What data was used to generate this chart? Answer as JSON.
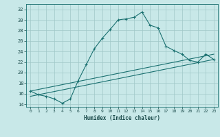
{
  "xlabel": "Humidex (Indice chaleur)",
  "ylabel": "",
  "bg_color": "#c8e8e8",
  "grid_color": "#a0c8c8",
  "line_color": "#1a7070",
  "xlim": [
    -0.5,
    23.5
  ],
  "ylim": [
    13.5,
    33.0
  ],
  "yticks": [
    14,
    16,
    18,
    20,
    22,
    24,
    26,
    28,
    30,
    32
  ],
  "xticks": [
    0,
    1,
    2,
    3,
    4,
    5,
    6,
    7,
    8,
    9,
    10,
    11,
    12,
    13,
    14,
    15,
    16,
    17,
    18,
    19,
    20,
    21,
    22,
    23
  ],
  "main_x": [
    0,
    1,
    2,
    3,
    4,
    5,
    6,
    7,
    8,
    9,
    10,
    11,
    12,
    13,
    14,
    15,
    16,
    17,
    18,
    19,
    20,
    21,
    22,
    23
  ],
  "main_y": [
    16.5,
    15.8,
    15.5,
    15.0,
    14.2,
    15.0,
    18.5,
    21.5,
    24.5,
    26.5,
    28.2,
    30.0,
    30.2,
    30.5,
    31.5,
    29.0,
    28.5,
    25.0,
    24.2,
    23.5,
    22.3,
    22.0,
    23.5,
    22.5
  ],
  "line2_x": [
    0,
    23
  ],
  "line2_y": [
    15.5,
    22.5
  ],
  "line3_x": [
    0,
    23
  ],
  "line3_y": [
    16.5,
    23.5
  ]
}
